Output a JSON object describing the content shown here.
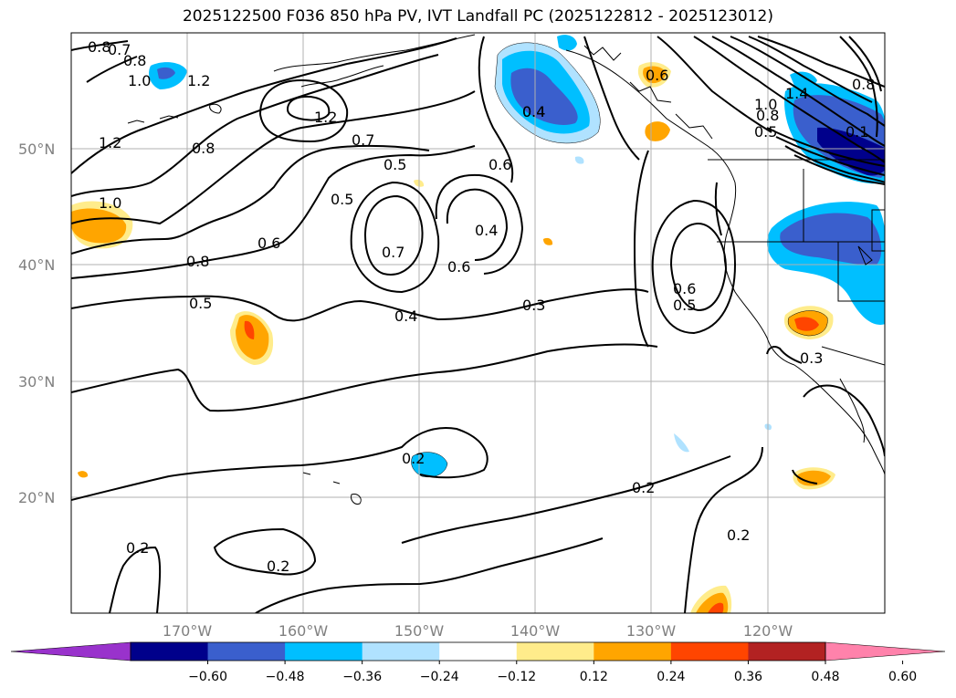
{
  "title": "2025122500 F036 850 hPa PV, IVT Landfall PC (2025122812 - 2025123012)",
  "lat_labels": [
    "50°N",
    "40°N",
    "30°N",
    "20°N"
  ],
  "lon_labels": [
    "170°W",
    "160°W",
    "150°W",
    "140°W",
    "130°W",
    "120°W"
  ],
  "colorbar": {
    "ticks": [
      "-0.60",
      "-0.48",
      "-0.36",
      "-0.24",
      "-0.12",
      "0.12",
      "0.24",
      "0.36",
      "0.48",
      "0.60"
    ],
    "colors": [
      "#9932cc",
      "#00008b",
      "#3a5fcd",
      "#00bfff",
      "#b0e2ff",
      "#ffffff",
      "#ffec8b",
      "#ffa500",
      "#ff4500",
      "#b22222",
      "#ff82ab"
    ]
  },
  "contour_labels": [
    "0.8",
    "0.7",
    "0.8",
    "1.0",
    "1.2",
    "1.2",
    "1.2",
    "0.8",
    "0.7",
    "0.5",
    "0.5",
    "0.6",
    "0.4",
    "0.6",
    "1.0",
    "0.8",
    "0.6",
    "0.7",
    "0.6",
    "0.4",
    "0.5",
    "0.4",
    "0.3",
    "0.6",
    "0.5",
    "0.3",
    "0.2",
    "0.2",
    "0.2",
    "0.2",
    "0.2",
    "0.4",
    "0.8",
    "1.0",
    "1.4",
    "0.8",
    "0.5",
    "0.1"
  ]
}
